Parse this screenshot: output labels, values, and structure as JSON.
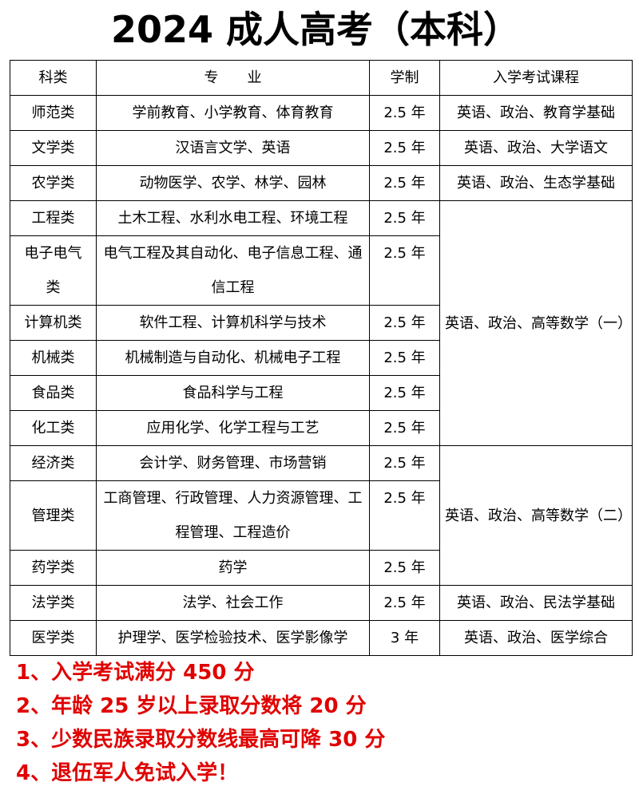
{
  "header": {
    "title": "2024 成人高考（本科）"
  },
  "table": {
    "columns": [
      "科类",
      "专　　业",
      "学制",
      "入学考试课程"
    ],
    "rows": [
      [
        "师范类",
        "学前教育、小学教育、体育教育",
        "2.5 年",
        "英语、政治、教育学基础"
      ],
      [
        "文学类",
        "汉语言文学、英语",
        "2.5 年",
        "英语、政治、大学语文"
      ],
      [
        "农学类",
        "动物医学、农学、林学、园林",
        "2.5 年",
        "英语、政治、生态学基础"
      ],
      [
        "工程类",
        "土木工程、水利水电工程、环境工程",
        "2.5 年",
        "英语、政治、高等数学（一）"
      ],
      [
        "电子电气类",
        "电气工程及其自动化、电子信息工程、通信工程",
        "2.5 年"
      ],
      [
        "计算机类",
        "软件工程、计算机科学与技术",
        "2.5 年"
      ],
      [
        "机械类",
        "机械制造与自动化、机械电子工程",
        "2.5 年"
      ],
      [
        "食品类",
        "食品科学与工程",
        "2.5 年"
      ],
      [
        "化工类",
        "应用化学、化学工程与工艺",
        "2.5 年"
      ],
      [
        "经济类",
        "会计学、财务管理、市场营销",
        "2.5 年",
        "英语、政治、高等数学（二）"
      ],
      [
        "管理类",
        "工商管理、行政管理、人力资源管理、工程管理、工程造价",
        "2.5 年"
      ],
      [
        "药学类",
        "药学",
        "2.5 年"
      ],
      [
        "法学类",
        "法学、社会工作",
        "2.5 年",
        "英语、政治、民法学基础"
      ],
      [
        "医学类",
        "护理学、医学检验技术、医学影像学",
        "3 年",
        "英语、政治、医学综合"
      ]
    ]
  },
  "notes": [
    "1、入学考试满分 450 分",
    "2、年龄 25 岁以上录取分数将 20 分",
    "3、少数民族录取分数线最高可降 30 分",
    "4、退伍军人免试入学！"
  ]
}
